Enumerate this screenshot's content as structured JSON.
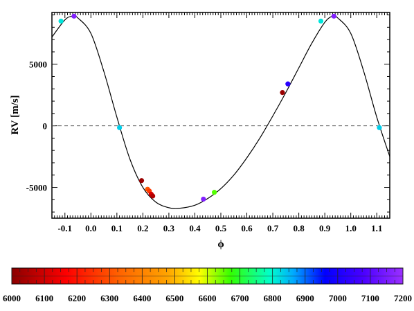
{
  "chart_data": {
    "type": "scatter",
    "title": "",
    "xlabel": "ϕ",
    "ylabel": "RV [m/s]",
    "xlim": [
      -0.15,
      1.15
    ],
    "ylim": [
      -7500,
      9200
    ],
    "x_ticks": [
      -0.1,
      0.0,
      0.1,
      0.2,
      0.3,
      0.4,
      0.5,
      0.6,
      0.7,
      0.8,
      0.9,
      1.0,
      1.1
    ],
    "x_tick_labels": [
      "-0.1",
      "0.0",
      "0.1",
      "0.2",
      "0.3",
      "0.4",
      "0.5",
      "0.6",
      "0.7",
      "0.8",
      "0.9",
      "1.0",
      "1.1"
    ],
    "y_ticks": [
      -5000,
      0,
      5000
    ],
    "y_tick_labels": [
      "-5000",
      "0",
      "5000"
    ],
    "reference_line": {
      "y": 0,
      "style": "dashed"
    },
    "model_curve": {
      "phase": [
        -0.15,
        -0.1,
        -0.07,
        -0.05,
        0.0,
        0.05,
        0.1,
        0.15,
        0.2,
        0.25,
        0.3,
        0.34,
        0.4,
        0.45,
        0.5,
        0.55,
        0.6,
        0.65,
        0.7,
        0.75,
        0.8,
        0.85,
        0.9,
        0.93,
        0.95,
        1.0,
        1.05,
        1.1,
        1.15
      ],
      "rv": [
        7200,
        8600,
        8900,
        8750,
        7500,
        4400,
        700,
        -2700,
        -5000,
        -6200,
        -6650,
        -6700,
        -6450,
        -5900,
        -5100,
        -4000,
        -2600,
        -1000,
        800,
        2700,
        4700,
        6700,
        8400,
        8900,
        8750,
        7500,
        4400,
        700,
        -2500
      ]
    },
    "points": [
      {
        "phase": -0.115,
        "rv": 8500,
        "teff": 6800
      },
      {
        "phase": -0.065,
        "rv": 8900,
        "teff": 7150
      },
      {
        "phase": 0.11,
        "rv": -150,
        "teff": 6820
      },
      {
        "phase": 0.195,
        "rv": -4450,
        "teff": 6020
      },
      {
        "phase": 0.218,
        "rv": -5150,
        "teff": 6300
      },
      {
        "phase": 0.225,
        "rv": -5300,
        "teff": 6250
      },
      {
        "phase": 0.232,
        "rv": -5550,
        "teff": 6100
      },
      {
        "phase": 0.238,
        "rv": -5700,
        "teff": 6050
      },
      {
        "phase": 0.433,
        "rv": -5950,
        "teff": 7150
      },
      {
        "phase": 0.475,
        "rv": -5400,
        "teff": 6630
      },
      {
        "phase": 0.737,
        "rv": 2700,
        "teff": 6020
      },
      {
        "phase": 0.758,
        "rv": 3400,
        "teff": 7000
      },
      {
        "phase": 0.885,
        "rv": 8500,
        "teff": 6800
      },
      {
        "phase": 0.935,
        "rv": 8900,
        "teff": 7150
      },
      {
        "phase": 1.11,
        "rv": -150,
        "teff": 6820
      }
    ],
    "colorbar": {
      "min": 6000,
      "max": 7200,
      "tick_values": [
        6000,
        6100,
        6200,
        6300,
        6400,
        6500,
        6600,
        6700,
        6800,
        6900,
        7000,
        7100,
        7200
      ],
      "tick_labels": [
        "6000",
        "6100",
        "6200",
        "6300",
        "6400",
        "6500",
        "6600",
        "6700",
        "6800",
        "6900",
        "7000",
        "7100",
        "7200"
      ],
      "grid": true
    },
    "grid": false,
    "legend": "none"
  }
}
